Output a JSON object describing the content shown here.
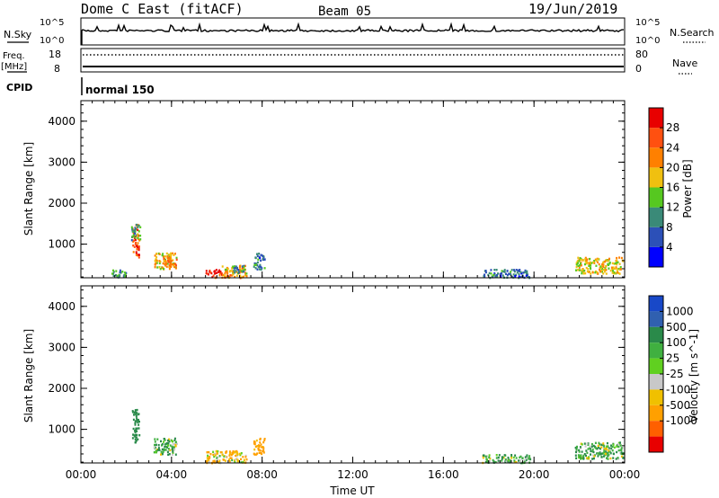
{
  "header": {
    "station": "Dome C East (fitACF)",
    "beam": "Beam 05",
    "date": "19/Jun/2019"
  },
  "status_panels": {
    "nsky_label": "N.Sky",
    "nsky_top": "10^5",
    "nsky_bottom": "10^0",
    "nsearch_label": "N.Search",
    "nsearch_top": "10^5",
    "nsearch_bottom": "10^0",
    "freq_label_1": "Freq.",
    "freq_label_2": "[MHz]",
    "freq_top": "18",
    "freq_bottom": "8",
    "nave_label": "Nave",
    "nave_top": "80",
    "nave_bottom": "0",
    "cpid_label": "CPID",
    "cpid_value": "normal 150"
  },
  "chart_data": [
    {
      "type": "heatmap",
      "title": "",
      "xlabel": "",
      "ylabel": "Slant Range [km]",
      "xlim": [
        0,
        24
      ],
      "ylim": [
        180,
        4500
      ],
      "x_ticks": [
        "00:00",
        "04:00",
        "08:00",
        "12:00",
        "16:00",
        "20:00",
        "00:00"
      ],
      "y_ticks": [
        "1000",
        "2000",
        "3000",
        "4000"
      ],
      "colorbar": {
        "label": "Power [dB]",
        "ticks": [
          "4",
          "8",
          "12",
          "16",
          "20",
          "24",
          "28"
        ],
        "colors": [
          "#0000ff",
          "#2c50b8",
          "#3a8a78",
          "#56c820",
          "#f0c010",
          "#ff8000",
          "#ff5010",
          "#e80000"
        ]
      },
      "clusters": [
        {
          "time": [
            2.25,
            2.55
          ],
          "range": [
            700,
            1500
          ],
          "power": 26
        },
        {
          "time": [
            2.2,
            2.6
          ],
          "range": [
            1100,
            1500
          ],
          "power": 12
        },
        {
          "time": [
            3.2,
            4.2
          ],
          "range": [
            400,
            800
          ],
          "power": 18
        },
        {
          "time": [
            3.6,
            4.2
          ],
          "range": [
            500,
            700
          ],
          "power": 24
        },
        {
          "time": [
            5.5,
            6.2
          ],
          "range": [
            200,
            400
          ],
          "power": 28
        },
        {
          "time": [
            6.2,
            7.3
          ],
          "range": [
            200,
            500
          ],
          "power": 20
        },
        {
          "time": [
            6.7,
            7.3
          ],
          "range": [
            300,
            500
          ],
          "power": 10
        },
        {
          "time": [
            7.6,
            8.1
          ],
          "range": [
            400,
            800
          ],
          "power": 8
        },
        {
          "time": [
            1.3,
            2.0
          ],
          "range": [
            200,
            400
          ],
          "power": 10
        },
        {
          "time": [
            17.7,
            19.8
          ],
          "range": [
            200,
            400
          ],
          "power": 8
        },
        {
          "time": [
            21.8,
            23.9
          ],
          "range": [
            300,
            700
          ],
          "power": 18
        }
      ]
    },
    {
      "type": "heatmap",
      "title": "",
      "xlabel": "Time UT",
      "ylabel": "Slant Range [km]",
      "xlim": [
        0,
        24
      ],
      "ylim": [
        180,
        4500
      ],
      "x_ticks": [
        "00:00",
        "04:00",
        "08:00",
        "12:00",
        "16:00",
        "20:00",
        "00:00"
      ],
      "y_ticks": [
        "1000",
        "2000",
        "3000",
        "4000"
      ],
      "colorbar": {
        "label": "Velocity [m s^-1]",
        "ticks": [
          "1000",
          "500",
          "100",
          "25",
          "-25",
          "-100",
          "-500",
          "-1000"
        ],
        "colors": [
          "#1848c8",
          "#3060b0",
          "#2a8a4a",
          "#40b040",
          "#60d020",
          "#c8c8c8",
          "#f0c000",
          "#ffa000",
          "#ff6000",
          "#e80000"
        ]
      },
      "clusters": [
        {
          "time": [
            2.25,
            2.55
          ],
          "range": [
            700,
            1500
          ],
          "velocity": 300
        },
        {
          "time": [
            3.2,
            4.2
          ],
          "range": [
            400,
            800
          ],
          "velocity": 80
        },
        {
          "time": [
            5.5,
            7.3
          ],
          "range": [
            200,
            500
          ],
          "velocity": -80
        },
        {
          "time": [
            7.6,
            8.1
          ],
          "range": [
            400,
            800
          ],
          "velocity": -200
        },
        {
          "time": [
            17.7,
            19.8
          ],
          "range": [
            200,
            400
          ],
          "velocity": 60
        },
        {
          "time": [
            21.8,
            23.9
          ],
          "range": [
            300,
            700
          ],
          "velocity": 80
        }
      ]
    }
  ]
}
